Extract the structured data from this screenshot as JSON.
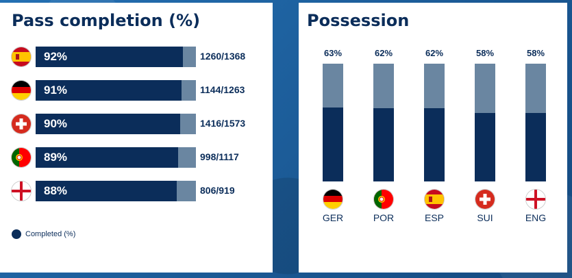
{
  "colors": {
    "completed": "#0b2d5a",
    "remainder": "#6a86a1"
  },
  "pass_panel": {
    "title": "Pass completion (%)",
    "legend": "Completed (%)",
    "rows": [
      {
        "flag": "spain-flag-icon",
        "pct_label": "92%",
        "frac": "1260/1368",
        "value": 92
      },
      {
        "flag": "germany-flag-icon",
        "pct_label": "91%",
        "frac": "1144/1263",
        "value": 91
      },
      {
        "flag": "switzerland-flag-icon",
        "pct_label": "90%",
        "frac": "1416/1573",
        "value": 90
      },
      {
        "flag": "portugal-flag-icon",
        "pct_label": "89%",
        "frac": "998/1117",
        "value": 89
      },
      {
        "flag": "england-flag-icon",
        "pct_label": "88%",
        "frac": "806/919",
        "value": 88
      }
    ]
  },
  "possession_panel": {
    "title": "Possession",
    "cols": [
      {
        "flag": "germany-flag-icon",
        "pct_label": "63%",
        "label": "GER",
        "value": 63
      },
      {
        "flag": "portugal-flag-icon",
        "pct_label": "62%",
        "label": "POR",
        "value": 62
      },
      {
        "flag": "spain-flag-icon",
        "pct_label": "62%",
        "label": "ESP",
        "value": 62
      },
      {
        "flag": "switzerland-flag-icon",
        "pct_label": "58%",
        "label": "SUI",
        "value": 58
      },
      {
        "flag": "england-flag-icon",
        "pct_label": "58%",
        "label": "ENG",
        "value": 58
      }
    ]
  },
  "chart_data": [
    {
      "type": "bar",
      "title": "Pass completion (%)",
      "orientation": "horizontal",
      "categories": [
        "ESP",
        "GER",
        "SUI",
        "POR",
        "ENG"
      ],
      "values": [
        92,
        91,
        90,
        89,
        88
      ],
      "data_labels": [
        "1260/1368",
        "1144/1263",
        "1416/1573",
        "998/1117",
        "806/919"
      ],
      "legend": [
        "Completed (%)"
      ],
      "ylim": [
        0,
        100
      ]
    },
    {
      "type": "bar",
      "title": "Possession",
      "orientation": "vertical",
      "categories": [
        "GER",
        "POR",
        "ESP",
        "SUI",
        "ENG"
      ],
      "values": [
        63,
        62,
        62,
        58,
        58
      ],
      "ylim": [
        0,
        100
      ]
    }
  ]
}
